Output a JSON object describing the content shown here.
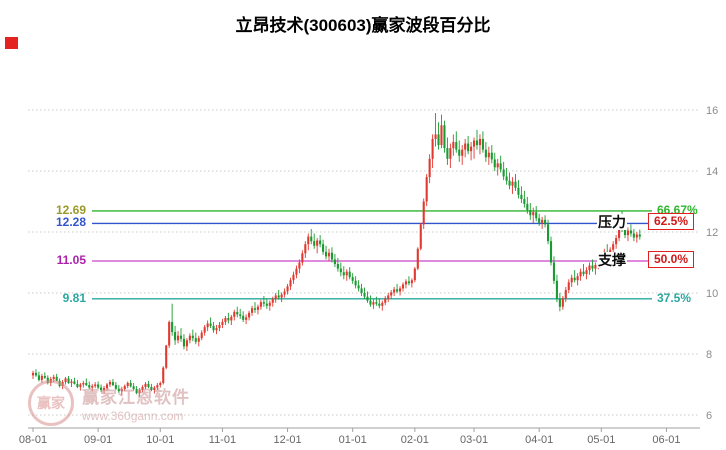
{
  "window": {
    "title": "立昂技术(300603)赢家波段百分比"
  },
  "watermark": {
    "logo_text": "赢家",
    "brand": "赢家江恩软件",
    "url": "www.360gann.com"
  },
  "chart_data": {
    "type": "candlestick",
    "title": "立昂技术(300603)赢家波段百分比",
    "symbol": "300603",
    "stock_name": "立昂技术",
    "y_ticks": [
      6,
      8,
      10,
      12,
      14,
      16
    ],
    "ylim": [
      5.6,
      16.7
    ],
    "x_labels": [
      "08-01",
      "09-01",
      "10-01",
      "11-01",
      "12-01",
      "01-01",
      "02-01",
      "03-01",
      "04-01",
      "05-01",
      "06-01"
    ],
    "x_tick_indices": [
      0,
      22,
      43,
      64,
      86,
      108,
      129,
      149,
      171,
      192,
      214
    ],
    "total_slots": 222,
    "grid": "horizontal-dotted",
    "colors": {
      "up": "#e0392f",
      "down": "#189b30",
      "grid": "#c9c9c9",
      "axis": "#a0a0a0",
      "axis_text": "#8c8c8c",
      "background": "#ffffff"
    },
    "levels": [
      {
        "price": "12.69",
        "value": 12.69,
        "pct": "66.67%",
        "color": "#2db52d",
        "price_color": "#9a9a2a",
        "boxed": false,
        "tag": null
      },
      {
        "price": "12.28",
        "value": 12.28,
        "pct": "62.5%",
        "color": "#3355cc",
        "price_color": "#3355cc",
        "boxed": true,
        "tag": "压力"
      },
      {
        "price": "11.05",
        "value": 11.05,
        "pct": "50.0%",
        "color": "#cc44cc",
        "price_color": "#aa22aa",
        "boxed": true,
        "tag": "支撑"
      },
      {
        "price": "9.81",
        "value": 9.81,
        "pct": "37.5%",
        "color": "#2aa8a0",
        "price_color": "#2aa8a0",
        "boxed": false,
        "tag": null
      }
    ],
    "candles": [
      [
        7.3,
        7.45,
        7.18,
        7.38
      ],
      [
        7.38,
        7.5,
        7.25,
        7.3
      ],
      [
        7.3,
        7.42,
        7.1,
        7.15
      ],
      [
        7.15,
        7.35,
        7.05,
        7.28
      ],
      [
        7.28,
        7.4,
        7.18,
        7.22
      ],
      [
        7.22,
        7.3,
        7.0,
        7.05
      ],
      [
        7.05,
        7.25,
        6.95,
        7.18
      ],
      [
        7.18,
        7.32,
        7.08,
        7.25
      ],
      [
        7.25,
        7.35,
        7.1,
        7.12
      ],
      [
        7.12,
        7.2,
        6.9,
        6.95
      ],
      [
        6.95,
        7.15,
        6.85,
        7.08
      ],
      [
        7.08,
        7.25,
        7.0,
        7.2
      ],
      [
        7.2,
        7.28,
        7.02,
        7.05
      ],
      [
        7.05,
        7.18,
        6.92,
        7.1
      ],
      [
        7.1,
        7.22,
        7.0,
        7.02
      ],
      [
        7.02,
        7.15,
        6.88,
        6.92
      ],
      [
        6.92,
        7.05,
        6.8,
        7.0
      ],
      [
        7.0,
        7.12,
        6.9,
        7.05
      ],
      [
        7.05,
        7.2,
        6.95,
        6.98
      ],
      [
        6.98,
        7.1,
        6.85,
        6.9
      ],
      [
        6.9,
        7.02,
        6.78,
        6.95
      ],
      [
        6.95,
        7.08,
        6.88,
        7.0
      ],
      [
        7.0,
        7.1,
        6.85,
        6.9
      ],
      [
        6.9,
        7.0,
        6.75,
        6.82
      ],
      [
        6.82,
        6.95,
        6.7,
        6.88
      ],
      [
        6.88,
        7.05,
        6.8,
        7.0
      ],
      [
        7.0,
        7.15,
        6.92,
        7.08
      ],
      [
        7.08,
        7.18,
        6.95,
        6.98
      ],
      [
        6.98,
        7.08,
        6.82,
        6.86
      ],
      [
        6.86,
        6.98,
        6.72,
        6.78
      ],
      [
        6.78,
        6.92,
        6.65,
        6.85
      ],
      [
        6.85,
        7.0,
        6.78,
        6.95
      ],
      [
        6.95,
        7.1,
        6.88,
        7.05
      ],
      [
        7.05,
        7.15,
        6.9,
        6.94
      ],
      [
        6.94,
        7.05,
        6.8,
        6.85
      ],
      [
        6.85,
        6.95,
        6.68,
        6.72
      ],
      [
        6.72,
        6.88,
        6.6,
        6.82
      ],
      [
        6.82,
        6.98,
        6.75,
        6.92
      ],
      [
        6.92,
        7.08,
        6.85,
        7.02
      ],
      [
        7.02,
        7.12,
        6.88,
        6.92
      ],
      [
        6.92,
        7.02,
        6.78,
        6.82
      ],
      [
        6.82,
        6.95,
        6.7,
        6.9
      ],
      [
        6.9,
        7.05,
        6.82,
        6.98
      ],
      [
        6.98,
        7.1,
        6.9,
        7.05
      ],
      [
        7.05,
        7.6,
        7.0,
        7.55
      ],
      [
        7.55,
        8.3,
        7.5,
        8.28
      ],
      [
        8.28,
        9.1,
        8.2,
        9.05
      ],
      [
        9.05,
        9.65,
        8.6,
        8.72
      ],
      [
        8.72,
        8.92,
        8.3,
        8.45
      ],
      [
        8.45,
        8.75,
        8.35,
        8.6
      ],
      [
        8.6,
        8.85,
        8.4,
        8.5
      ],
      [
        8.5,
        8.65,
        8.15,
        8.25
      ],
      [
        8.25,
        8.52,
        8.1,
        8.45
      ],
      [
        8.45,
        8.68,
        8.35,
        8.6
      ],
      [
        8.6,
        8.8,
        8.42,
        8.52
      ],
      [
        8.52,
        8.7,
        8.32,
        8.4
      ],
      [
        8.4,
        8.6,
        8.25,
        8.52
      ],
      [
        8.52,
        8.78,
        8.45,
        8.7
      ],
      [
        8.7,
        8.95,
        8.6,
        8.88
      ],
      [
        8.88,
        9.1,
        8.75,
        9.0
      ],
      [
        9.0,
        9.2,
        8.85,
        8.92
      ],
      [
        8.92,
        9.05,
        8.7,
        8.78
      ],
      [
        8.78,
        8.95,
        8.65,
        8.85
      ],
      [
        8.85,
        9.05,
        8.75,
        8.95
      ],
      [
        8.95,
        9.15,
        8.85,
        9.05
      ],
      [
        9.05,
        9.25,
        8.95,
        9.18
      ],
      [
        9.18,
        9.35,
        9.0,
        9.1
      ],
      [
        9.1,
        9.28,
        8.95,
        9.22
      ],
      [
        9.22,
        9.45,
        9.1,
        9.38
      ],
      [
        9.38,
        9.55,
        9.2,
        9.3
      ],
      [
        9.3,
        9.48,
        9.15,
        9.25
      ],
      [
        9.25,
        9.4,
        9.05,
        9.12
      ],
      [
        9.12,
        9.3,
        8.98,
        9.2
      ],
      [
        9.2,
        9.42,
        9.1,
        9.35
      ],
      [
        9.35,
        9.58,
        9.25,
        9.5
      ],
      [
        9.5,
        9.7,
        9.35,
        9.45
      ],
      [
        9.45,
        9.62,
        9.3,
        9.55
      ],
      [
        9.55,
        9.78,
        9.45,
        9.7
      ],
      [
        9.7,
        9.9,
        9.55,
        9.65
      ],
      [
        9.65,
        9.82,
        9.48,
        9.58
      ],
      [
        9.58,
        9.75,
        9.42,
        9.68
      ],
      [
        9.68,
        9.88,
        9.55,
        9.8
      ],
      [
        9.8,
        10.0,
        9.68,
        9.92
      ],
      [
        9.92,
        10.1,
        9.78,
        9.85
      ],
      [
        9.85,
        10.02,
        9.7,
        9.95
      ],
      [
        9.95,
        10.15,
        9.85,
        10.05
      ],
      [
        10.05,
        10.3,
        9.95,
        10.22
      ],
      [
        10.22,
        10.5,
        10.1,
        10.42
      ],
      [
        10.42,
        10.7,
        10.3,
        10.6
      ],
      [
        10.6,
        10.9,
        10.48,
        10.8
      ],
      [
        10.8,
        11.1,
        10.65,
        11.0
      ],
      [
        11.0,
        11.4,
        10.9,
        11.3
      ],
      [
        11.3,
        11.7,
        11.15,
        11.6
      ],
      [
        11.6,
        11.95,
        11.4,
        11.85
      ],
      [
        11.85,
        12.1,
        11.6,
        11.7
      ],
      [
        11.7,
        11.95,
        11.45,
        11.55
      ],
      [
        11.55,
        11.8,
        11.3,
        11.72
      ],
      [
        11.72,
        11.9,
        11.5,
        11.6
      ],
      [
        11.6,
        11.75,
        11.25,
        11.35
      ],
      [
        11.35,
        11.55,
        11.1,
        11.2
      ],
      [
        11.2,
        11.45,
        11.05,
        11.32
      ],
      [
        11.32,
        11.5,
        11.0,
        11.1
      ],
      [
        11.1,
        11.28,
        10.85,
        10.95
      ],
      [
        10.95,
        11.15,
        10.7,
        10.8
      ],
      [
        10.8,
        11.0,
        10.55,
        10.68
      ],
      [
        10.68,
        10.88,
        10.45,
        10.58
      ],
      [
        10.58,
        10.78,
        10.4,
        10.7
      ],
      [
        10.7,
        10.85,
        10.45,
        10.52
      ],
      [
        10.52,
        10.65,
        10.3,
        10.4
      ],
      [
        10.4,
        10.55,
        10.15,
        10.25
      ],
      [
        10.25,
        10.42,
        10.05,
        10.15
      ],
      [
        10.15,
        10.3,
        9.9,
        10.0
      ],
      [
        10.0,
        10.18,
        9.8,
        9.88
      ],
      [
        9.88,
        10.05,
        9.68,
        9.75
      ],
      [
        9.75,
        9.92,
        9.55,
        9.62
      ],
      [
        9.62,
        9.8,
        9.48,
        9.7
      ],
      [
        9.7,
        9.88,
        9.58,
        9.65
      ],
      [
        9.65,
        9.82,
        9.5,
        9.58
      ],
      [
        9.58,
        9.75,
        9.42,
        9.68
      ],
      [
        9.68,
        9.9,
        9.6,
        9.82
      ],
      [
        9.82,
        10.0,
        9.7,
        9.92
      ],
      [
        9.92,
        10.1,
        9.8,
        10.02
      ],
      [
        10.02,
        10.2,
        9.9,
        10.12
      ],
      [
        10.12,
        10.3,
        10.0,
        10.05
      ],
      [
        10.05,
        10.22,
        9.92,
        10.15
      ],
      [
        10.15,
        10.35,
        10.05,
        10.28
      ],
      [
        10.28,
        10.45,
        10.15,
        10.38
      ],
      [
        10.38,
        10.55,
        10.25,
        10.32
      ],
      [
        10.32,
        10.48,
        10.18,
        10.42
      ],
      [
        10.42,
        10.85,
        10.35,
        10.8
      ],
      [
        10.8,
        11.5,
        10.75,
        11.45
      ],
      [
        11.45,
        12.3,
        11.4,
        12.25
      ],
      [
        12.25,
        13.1,
        12.1,
        13.0
      ],
      [
        13.0,
        13.9,
        12.85,
        13.8
      ],
      [
        13.8,
        14.55,
        13.6,
        14.4
      ],
      [
        14.4,
        15.2,
        14.1,
        15.05
      ],
      [
        15.05,
        15.9,
        14.8,
        15.2
      ],
      [
        15.2,
        15.6,
        14.7,
        14.85
      ],
      [
        14.85,
        15.85,
        14.75,
        15.5
      ],
      [
        15.5,
        15.65,
        14.6,
        14.75
      ],
      [
        14.75,
        15.1,
        14.2,
        14.4
      ],
      [
        14.4,
        14.9,
        14.1,
        14.75
      ],
      [
        14.75,
        15.2,
        14.5,
        14.95
      ],
      [
        14.95,
        15.3,
        14.6,
        14.7
      ],
      [
        14.7,
        15.0,
        14.3,
        14.5
      ],
      [
        14.5,
        14.85,
        14.2,
        14.7
      ],
      [
        14.7,
        15.05,
        14.45,
        14.9
      ],
      [
        14.9,
        15.15,
        14.55,
        14.65
      ],
      [
        14.65,
        14.95,
        14.35,
        14.8
      ],
      [
        14.8,
        15.1,
        14.4,
        15.0
      ],
      [
        15.0,
        15.35,
        14.7,
        14.85
      ],
      [
        14.85,
        15.2,
        14.55,
        15.05
      ],
      [
        15.05,
        15.3,
        14.6,
        14.7
      ],
      [
        14.7,
        14.95,
        14.3,
        14.45
      ],
      [
        14.45,
        14.8,
        14.2,
        14.6
      ],
      [
        14.6,
        14.85,
        14.25,
        14.38
      ],
      [
        14.38,
        14.6,
        14.0,
        14.12
      ],
      [
        14.12,
        14.4,
        13.85,
        14.25
      ],
      [
        14.25,
        14.5,
        13.95,
        14.05
      ],
      [
        14.05,
        14.3,
        13.7,
        13.82
      ],
      [
        13.82,
        14.1,
        13.55,
        13.68
      ],
      [
        13.68,
        13.95,
        13.4,
        13.52
      ],
      [
        13.52,
        13.8,
        13.25,
        13.65
      ],
      [
        13.65,
        13.9,
        13.35,
        13.45
      ],
      [
        13.45,
        13.7,
        13.1,
        13.22
      ],
      [
        13.22,
        13.5,
        12.95,
        13.08
      ],
      [
        13.08,
        13.35,
        12.8,
        12.92
      ],
      [
        12.92,
        13.15,
        12.6,
        12.72
      ],
      [
        12.72,
        12.95,
        12.4,
        12.55
      ],
      [
        12.55,
        12.8,
        12.3,
        12.65
      ],
      [
        12.65,
        12.85,
        12.35,
        12.45
      ],
      [
        12.45,
        12.6,
        12.2,
        12.3
      ],
      [
        12.3,
        12.5,
        12.1,
        12.4
      ],
      [
        12.4,
        12.55,
        12.15,
        12.25
      ],
      [
        12.25,
        12.4,
        11.6,
        11.7
      ],
      [
        11.7,
        11.85,
        10.9,
        11.0
      ],
      [
        11.0,
        11.2,
        10.3,
        10.4
      ],
      [
        10.4,
        10.6,
        9.7,
        9.8
      ],
      [
        9.8,
        10.0,
        9.4,
        9.55
      ],
      [
        9.55,
        9.9,
        9.45,
        9.82
      ],
      [
        9.82,
        10.2,
        9.7,
        10.1
      ],
      [
        10.1,
        10.45,
        10.0,
        10.35
      ],
      [
        10.35,
        10.6,
        10.2,
        10.5
      ],
      [
        10.5,
        10.75,
        10.35,
        10.42
      ],
      [
        10.42,
        10.65,
        10.25,
        10.55
      ],
      [
        10.55,
        10.8,
        10.4,
        10.7
      ],
      [
        10.7,
        10.95,
        10.55,
        10.62
      ],
      [
        10.62,
        10.85,
        10.45,
        10.75
      ],
      [
        10.75,
        11.0,
        10.6,
        10.9
      ],
      [
        10.9,
        11.1,
        10.7,
        10.8
      ],
      [
        10.8,
        11.0,
        10.6,
        10.92
      ],
      [
        10.92,
        11.15,
        10.78,
        11.05
      ],
      [
        11.05,
        11.3,
        10.9,
        11.2
      ],
      [
        11.2,
        11.45,
        11.05,
        11.35
      ],
      [
        11.35,
        11.6,
        11.2,
        11.28
      ],
      [
        11.28,
        11.5,
        11.1,
        11.42
      ],
      [
        11.42,
        11.7,
        11.3,
        11.6
      ],
      [
        11.6,
        11.9,
        11.45,
        11.8
      ],
      [
        11.8,
        12.3,
        11.7,
        12.2
      ],
      [
        12.2,
        12.69,
        12.0,
        12.1
      ],
      [
        12.1,
        12.4,
        11.8,
        11.9
      ],
      [
        11.9,
        12.15,
        11.7,
        12.05
      ],
      [
        12.05,
        12.25,
        11.85,
        11.95
      ],
      [
        11.95,
        12.1,
        11.7,
        11.82
      ],
      [
        11.82,
        12.0,
        11.65,
        11.92
      ],
      [
        11.92,
        12.08,
        11.75,
        11.85
      ]
    ]
  }
}
